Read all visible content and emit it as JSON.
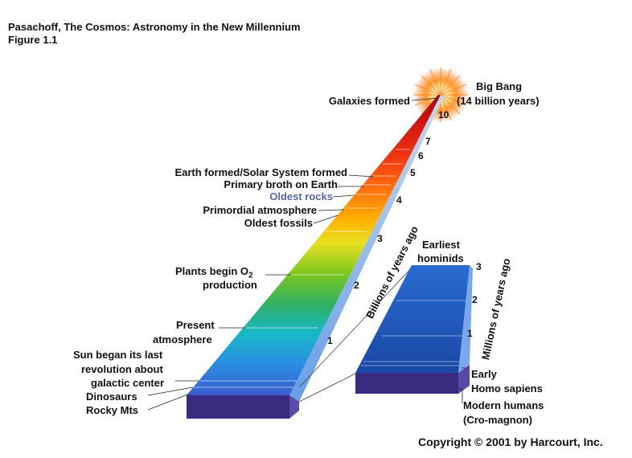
{
  "header": {
    "line1": "Pasachoff, The Cosmos: Astronomy in the New Millennium",
    "line2": "Figure 1.1"
  },
  "big_bang": {
    "line1": "Big Bang",
    "line2": "(14 billion years)"
  },
  "left_labels": {
    "galaxies": "Galaxies formed",
    "earth_formed": "Earth formed/Solar System formed",
    "primary_broth": "Primary broth on Earth",
    "oldest_rocks": "Oldest rocks",
    "primordial": "Primordial atmosphere",
    "oldest_fossils": "Oldest fossils",
    "plants_line1": "Plants begin O",
    "plants_sub": "2",
    "plants_line2": "production",
    "present_line1": "Present",
    "present_line2": "atmosphere",
    "sun_line1": "Sun began its last",
    "sun_line2": "revolution about",
    "sun_line3": "galactic center",
    "dinosaurs": "Dinosaurs",
    "rocky": "Rocky Mts"
  },
  "ticks_billions": [
    "1",
    "2",
    "3",
    "4",
    "5",
    "6",
    "7",
    "10"
  ],
  "axis_billions": "Billions of years ago",
  "ticks_millions": [
    "1",
    "2",
    "3"
  ],
  "axis_millions": "Millions of years ago",
  "right_labels": {
    "earliest_line1": "Earliest",
    "earliest_line2": "hominids",
    "early_line1": "Early",
    "early_line2": "Homo sapiens",
    "modern_line1": "Modern humans",
    "modern_line2": "(Cro-magnon)"
  },
  "copyright": "Copyright © 2001 by Harcourt, Inc.",
  "colors": {
    "oldest_rocks": "#5566aa",
    "base": "#3a2a80",
    "right_block": "#1f4fb0"
  }
}
